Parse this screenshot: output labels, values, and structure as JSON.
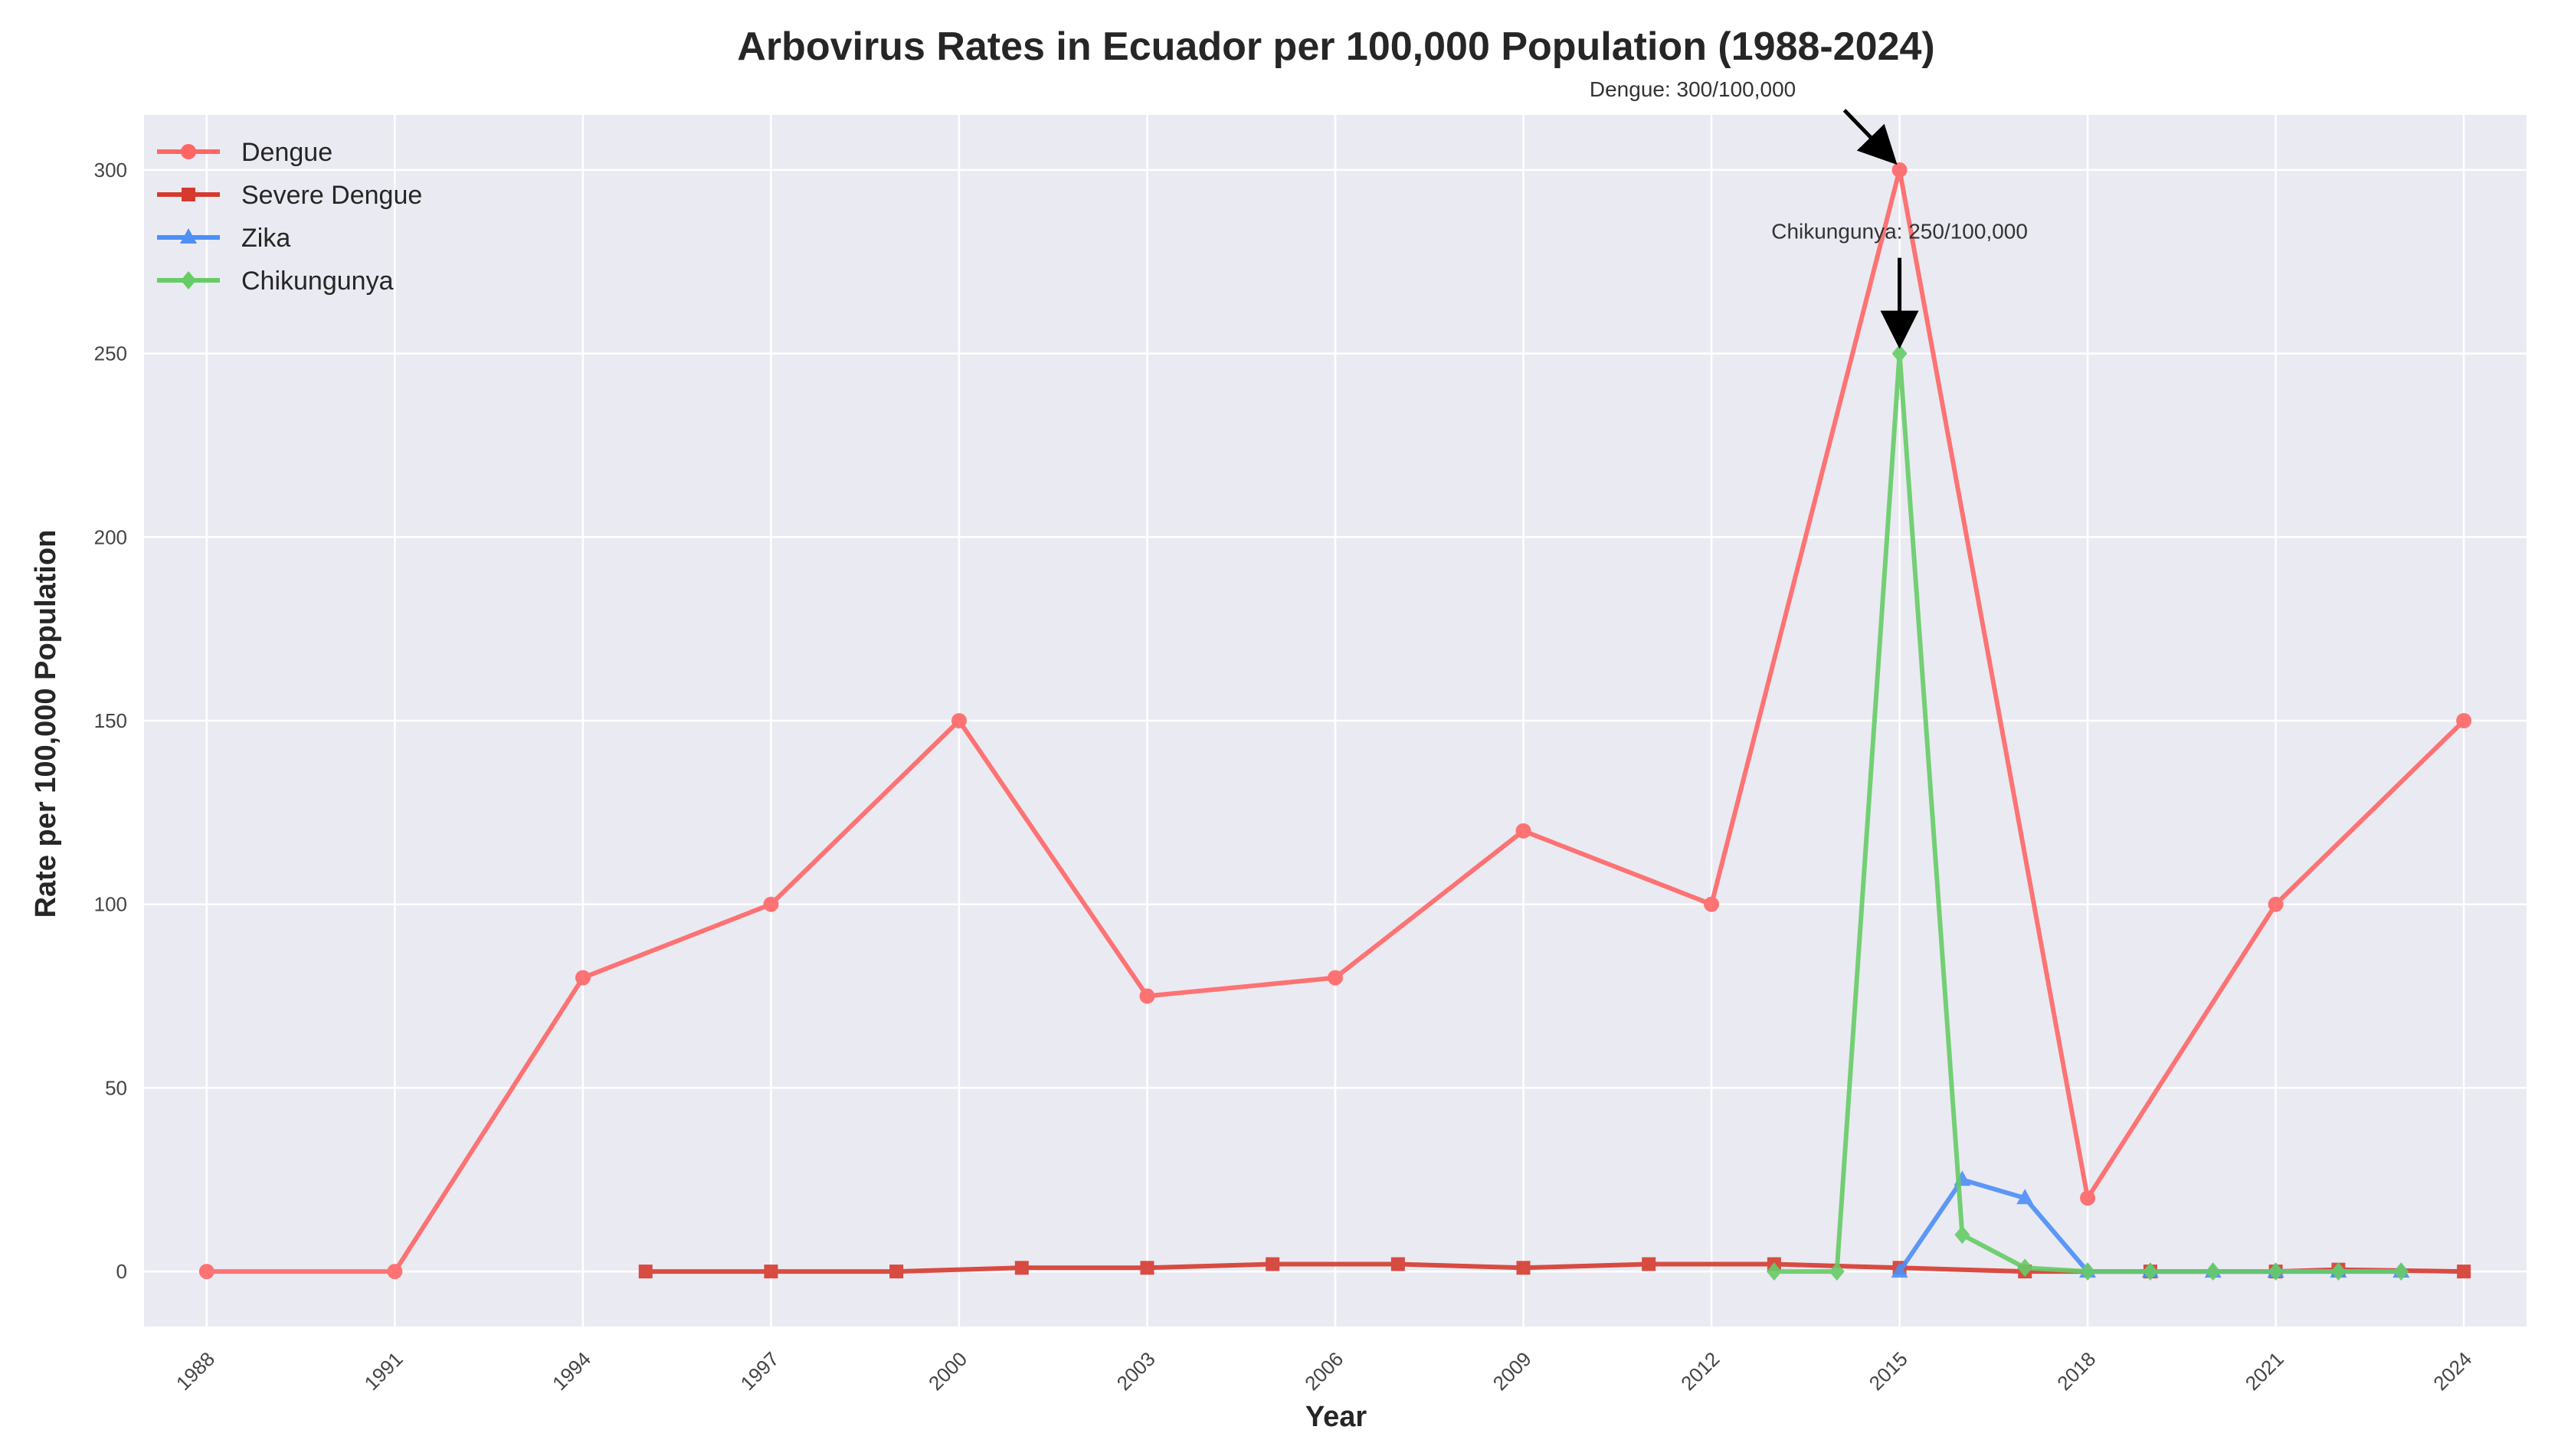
{
  "chart_data": {
    "type": "line",
    "title": "Arbovirus Rates in Ecuador per 100,000 Population (1988-2024)",
    "xlabel": "Year",
    "ylabel": "Rate per 100,000 Population",
    "xlim": [
      1987,
      2025
    ],
    "ylim": [
      -15,
      315
    ],
    "xticks": [
      "1988",
      "1991",
      "1994",
      "1997",
      "2000",
      "2003",
      "2006",
      "2009",
      "2012",
      "2015",
      "2018",
      "2021",
      "2024"
    ],
    "yticks": [
      "0",
      "50",
      "100",
      "150",
      "200",
      "250",
      "300"
    ],
    "grid": true,
    "legend_position": "top-left",
    "series": [
      {
        "name": "Dengue",
        "color": "#ff6666",
        "marker": "circle",
        "points": [
          [
            1988,
            0
          ],
          [
            1991,
            0
          ],
          [
            1994,
            80
          ],
          [
            1997,
            100
          ],
          [
            2000,
            150
          ],
          [
            2003,
            75
          ],
          [
            2006,
            80
          ],
          [
            2009,
            120
          ],
          [
            2012,
            100
          ],
          [
            2015,
            300
          ],
          [
            2018,
            20
          ],
          [
            2021,
            100
          ],
          [
            2024,
            150
          ]
        ]
      },
      {
        "name": "Severe Dengue",
        "color": "#d63a2e",
        "marker": "square",
        "points": [
          [
            1995,
            0
          ],
          [
            1997,
            0
          ],
          [
            1999,
            0
          ],
          [
            2001,
            1
          ],
          [
            2003,
            1
          ],
          [
            2005,
            2
          ],
          [
            2007,
            2
          ],
          [
            2009,
            1
          ],
          [
            2011,
            2
          ],
          [
            2013,
            2
          ],
          [
            2015,
            1
          ],
          [
            2017,
            0
          ],
          [
            2019,
            0
          ],
          [
            2021,
            0
          ],
          [
            2022,
            0.5
          ],
          [
            2024,
            0
          ]
        ]
      },
      {
        "name": "Zika",
        "color": "#4d8ff7",
        "marker": "triangle",
        "points": [
          [
            2015,
            0
          ],
          [
            2016,
            25
          ],
          [
            2017,
            20
          ],
          [
            2018,
            0
          ],
          [
            2019,
            0
          ],
          [
            2020,
            0
          ],
          [
            2021,
            0
          ],
          [
            2022,
            0
          ],
          [
            2023,
            0
          ]
        ]
      },
      {
        "name": "Chikungunya",
        "color": "#66cc66",
        "marker": "diamond",
        "points": [
          [
            2013,
            0
          ],
          [
            2014,
            0
          ],
          [
            2015,
            250
          ],
          [
            2016,
            10
          ],
          [
            2017,
            1
          ],
          [
            2018,
            0
          ],
          [
            2019,
            0
          ],
          [
            2020,
            0
          ],
          [
            2021,
            0
          ],
          [
            2022,
            0
          ],
          [
            2023,
            0
          ]
        ]
      }
    ],
    "annotations": [
      {
        "text": "Dengue: 300/100,000",
        "x": 2015,
        "y": 300
      },
      {
        "text": "Chikungunya: 250/100,000",
        "x": 2015,
        "y": 250
      }
    ]
  }
}
